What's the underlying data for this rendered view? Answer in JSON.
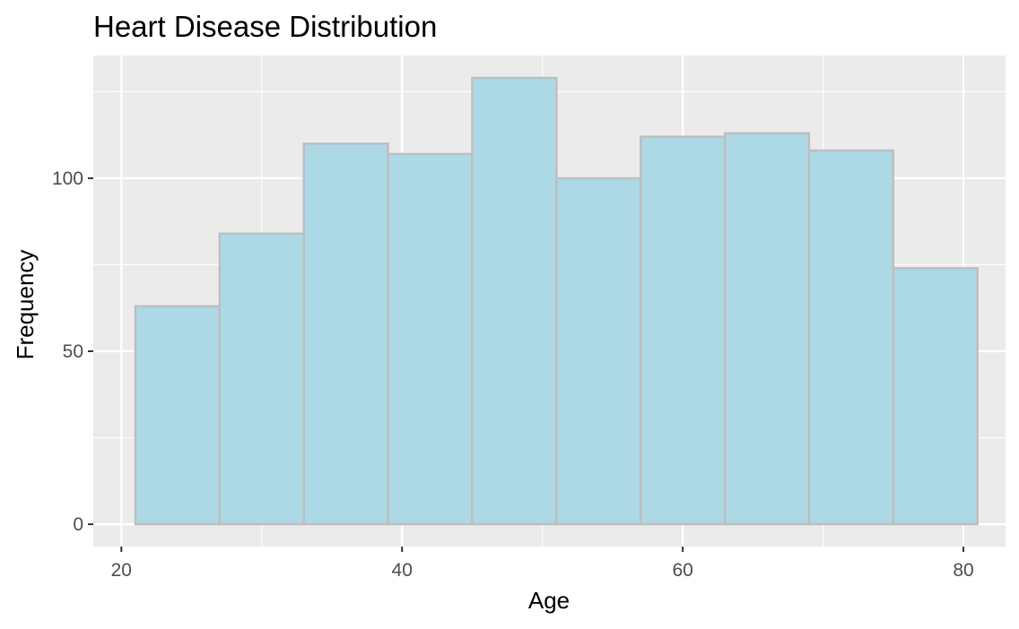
{
  "chart_data": {
    "type": "bar",
    "title": "Heart Disease Distribution",
    "xlabel": "Age",
    "ylabel": "Frequency",
    "bins": [
      {
        "x0": 21,
        "x1": 27,
        "value": 63
      },
      {
        "x0": 27,
        "x1": 33,
        "value": 84
      },
      {
        "x0": 33,
        "x1": 39,
        "value": 110
      },
      {
        "x0": 39,
        "x1": 45,
        "value": 107
      },
      {
        "x0": 45,
        "x1": 51,
        "value": 129
      },
      {
        "x0": 51,
        "x1": 57,
        "value": 100
      },
      {
        "x0": 57,
        "x1": 63,
        "value": 112
      },
      {
        "x0": 63,
        "x1": 69,
        "value": 113
      },
      {
        "x0": 69,
        "x1": 75,
        "value": 108
      },
      {
        "x0": 75,
        "x1": 81,
        "value": 74
      }
    ],
    "xlim": [
      18,
      83
    ],
    "ylim": [
      -6.45,
      135.45
    ],
    "x_ticks": [
      20,
      40,
      60,
      80
    ],
    "x_tick_labels": [
      "20",
      "40",
      "60",
      "80"
    ],
    "x_minor_ticks": [
      30,
      50,
      70
    ],
    "y_ticks": [
      0,
      50,
      100
    ],
    "y_tick_labels": [
      "0",
      "50",
      "100"
    ],
    "y_minor_ticks": [
      25,
      75,
      125
    ],
    "grid": true,
    "legend": "none",
    "colors": {
      "bar_fill": "#add8e6",
      "bar_stroke": "#bebebe",
      "panel_bg": "#ebebeb",
      "grid": "#ffffff"
    }
  }
}
